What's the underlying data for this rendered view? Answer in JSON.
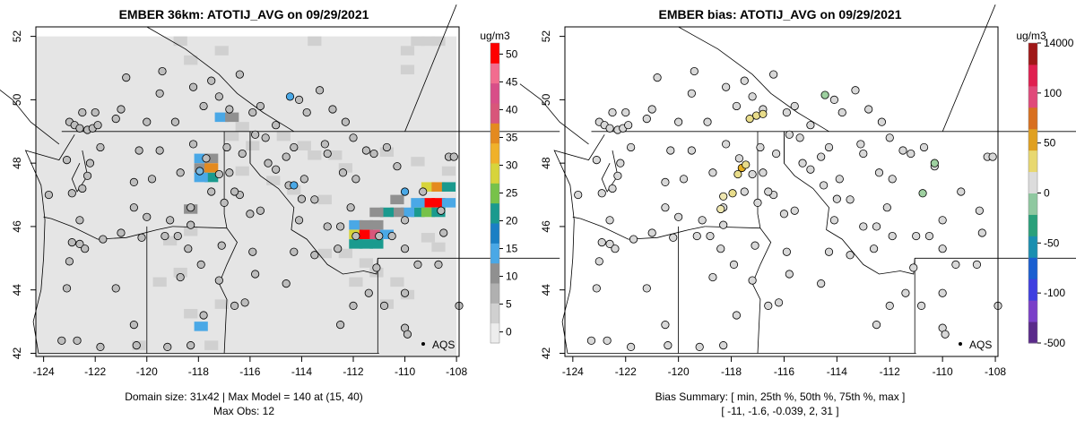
{
  "chart_data": [
    {
      "type": "heatmap",
      "title": "EMBER 36km: ATOTIJ_AVG on 09/29/2021",
      "xlabel": "",
      "ylabel": "",
      "x_ticks": [
        "-124",
        "-122",
        "-120",
        "-118",
        "-116",
        "-114",
        "-112",
        "-110",
        "-108"
      ],
      "y_ticks": [
        "42",
        "44",
        "46",
        "48",
        "50",
        "52"
      ],
      "xlim": [
        -124.3,
        -107.9
      ],
      "ylim": [
        41.9,
        52.3
      ],
      "colorbar": {
        "unit_label": "ug/m3",
        "ticks": [
          "0",
          "5",
          "10",
          "15",
          "20",
          "25",
          "30",
          "35",
          "40",
          "45",
          "50"
        ],
        "range": [
          -2,
          52
        ],
        "colors": [
          "#ededed",
          "#d0d0d0",
          "#b0b0b0",
          "#909090",
          "#4aa8e6",
          "#1a7fc4",
          "#1a9a8e",
          "#77c24a",
          "#d7d43b",
          "#f0b12a",
          "#e48a1f",
          "#d8567a",
          "#d84e88",
          "#f26c8f",
          "#ff0000"
        ]
      },
      "legend_label": "AQS",
      "caption_line1": "Domain size: 31x42 | Max Model = 140 at (15, 40)",
      "caption_line2": "Max Obs: 12",
      "hot_cells": [
        {
          "lon": -109.1,
          "lat": 47.25,
          "value": 30
        },
        {
          "lon": -108.7,
          "lat": 47.25,
          "value": 35
        },
        {
          "lon": -108.3,
          "lat": 47.25,
          "value": 20
        },
        {
          "lon": -109.1,
          "lat": 46.75,
          "value": 50
        },
        {
          "lon": -108.7,
          "lat": 46.75,
          "value": 50
        },
        {
          "lon": -108.3,
          "lat": 46.75,
          "value": 15
        },
        {
          "lon": -109.5,
          "lat": 46.75,
          "value": 15
        },
        {
          "lon": -109.5,
          "lat": 46.45,
          "value": 20
        },
        {
          "lon": -109.9,
          "lat": 46.45,
          "value": 15
        },
        {
          "lon": -110.3,
          "lat": 46.45,
          "value": 12
        },
        {
          "lon": -110.7,
          "lat": 46.45,
          "value": 22
        },
        {
          "lon": -111.1,
          "lat": 46.45,
          "value": 12
        },
        {
          "lon": -109.1,
          "lat": 46.45,
          "value": 25
        },
        {
          "lon": -108.7,
          "lat": 46.45,
          "value": 20
        },
        {
          "lon": -111.9,
          "lat": 46.05,
          "value": 15
        },
        {
          "lon": -111.5,
          "lat": 46.05,
          "value": 12
        },
        {
          "lon": -111.1,
          "lat": 46.05,
          "value": 12
        },
        {
          "lon": -111.9,
          "lat": 45.75,
          "value": 30
        },
        {
          "lon": -111.5,
          "lat": 45.75,
          "value": 50
        },
        {
          "lon": -111.1,
          "lat": 45.75,
          "value": 38
        },
        {
          "lon": -110.7,
          "lat": 45.75,
          "value": 15
        },
        {
          "lon": -111.9,
          "lat": 45.45,
          "value": 20
        },
        {
          "lon": -111.5,
          "lat": 45.45,
          "value": 20
        },
        {
          "lon": -111.1,
          "lat": 45.45,
          "value": 20
        },
        {
          "lon": -117.9,
          "lat": 47.85,
          "value": 12
        },
        {
          "lon": -117.5,
          "lat": 47.85,
          "value": 35
        },
        {
          "lon": -117.5,
          "lat": 47.55,
          "value": 20
        },
        {
          "lon": -117.9,
          "lat": 47.55,
          "value": 15
        },
        {
          "lon": -117.9,
          "lat": 48.15,
          "value": 15
        },
        {
          "lon": -117.5,
          "lat": 48.15,
          "value": 12
        },
        {
          "lon": -118.3,
          "lat": 46.55,
          "value": 12
        },
        {
          "lon": -117.1,
          "lat": 49.45,
          "value": 15
        },
        {
          "lon": -116.7,
          "lat": 49.45,
          "value": 12
        },
        {
          "lon": -117.9,
          "lat": 42.85,
          "value": 15
        },
        {
          "lon": -110.3,
          "lat": 46.85,
          "value": 12
        }
      ],
      "gray_cells": [
        {
          "lon": -114.7,
          "lat": 48.85,
          "value": 5
        },
        {
          "lon": -113.9,
          "lat": 48.55,
          "value": 5
        },
        {
          "lon": -113.5,
          "lat": 48.25,
          "value": 5
        },
        {
          "lon": -112.7,
          "lat": 48.25,
          "value": 3
        },
        {
          "lon": -112.3,
          "lat": 47.85,
          "value": 5
        },
        {
          "lon": -115.9,
          "lat": 48.55,
          "value": 3
        },
        {
          "lon": -116.3,
          "lat": 47.75,
          "value": 3
        },
        {
          "lon": -115.1,
          "lat": 47.45,
          "value": 3
        },
        {
          "lon": -114.3,
          "lat": 47.15,
          "value": 5
        },
        {
          "lon": -113.1,
          "lat": 46.85,
          "value": 3
        },
        {
          "lon": -116.7,
          "lat": 48.85,
          "value": 5
        },
        {
          "lon": -116.3,
          "lat": 49.15,
          "value": 3
        },
        {
          "lon": -112.3,
          "lat": 45.15,
          "value": 5
        },
        {
          "lon": -111.5,
          "lat": 44.85,
          "value": 5
        },
        {
          "lon": -111.1,
          "lat": 44.55,
          "value": 3
        },
        {
          "lon": -110.3,
          "lat": 44.25,
          "value": 5
        },
        {
          "lon": -109.9,
          "lat": 43.85,
          "value": 3
        },
        {
          "lon": -110.7,
          "lat": 43.55,
          "value": 5
        },
        {
          "lon": -111.9,
          "lat": 44.25,
          "value": 3
        },
        {
          "lon": -113.1,
          "lat": 45.15,
          "value": 3
        },
        {
          "lon": -118.3,
          "lat": 45.85,
          "value": 5
        },
        {
          "lon": -119.1,
          "lat": 45.55,
          "value": 3
        },
        {
          "lon": -118.7,
          "lat": 44.55,
          "value": 3
        },
        {
          "lon": -119.5,
          "lat": 44.25,
          "value": 5
        },
        {
          "lon": -118.3,
          "lat": 43.25,
          "value": 3
        },
        {
          "lon": -117.1,
          "lat": 43.55,
          "value": 3
        },
        {
          "lon": -120.3,
          "lat": 42.25,
          "value": 5
        },
        {
          "lon": -117.5,
          "lat": 42.25,
          "value": 3
        },
        {
          "lon": -109.1,
          "lat": 45.65,
          "value": 5
        },
        {
          "lon": -108.7,
          "lat": 45.35,
          "value": 3
        },
        {
          "lon": -108.3,
          "lat": 47.75,
          "value": 5
        },
        {
          "lon": -109.5,
          "lat": 48.05,
          "value": 3
        },
        {
          "lon": -110.7,
          "lat": 48.35,
          "value": 3
        },
        {
          "lon": -109.1,
          "lat": 51.85,
          "value": 5
        },
        {
          "lon": -108.7,
          "lat": 51.85,
          "value": 5
        },
        {
          "lon": -109.5,
          "lat": 51.85,
          "value": 5
        },
        {
          "lon": -109.9,
          "lat": 51.55,
          "value": 3
        },
        {
          "lon": -109.9,
          "lat": 50.95,
          "value": 3
        },
        {
          "lon": -113.5,
          "lat": 51.85,
          "value": 3
        },
        {
          "lon": -118.3,
          "lat": 51.25,
          "value": 3
        },
        {
          "lon": -118.7,
          "lat": 51.85,
          "value": 3
        },
        {
          "lon": -117.1,
          "lat": 51.55,
          "value": 3
        }
      ]
    },
    {
      "type": "scatter",
      "title": "EMBER bias: ATOTIJ_AVG on 09/29/2021",
      "xlabel": "",
      "ylabel": "",
      "x_ticks": [
        "-124",
        "-122",
        "-120",
        "-118",
        "-116",
        "-114",
        "-112",
        "-110",
        "-108"
      ],
      "y_ticks": [
        "42",
        "44",
        "46",
        "48",
        "50",
        "52"
      ],
      "xlim": [
        -124.3,
        -107.9
      ],
      "ylim": [
        41.9,
        52.3
      ],
      "colorbar": {
        "unit_label": "ug/m3",
        "ticks": [
          "-500",
          "-100",
          "-50",
          "0",
          "50",
          "100",
          "14000"
        ],
        "colors": [
          "#5a2a8a",
          "#7a3fc8",
          "#3f3fe0",
          "#1a5fd0",
          "#1a8fb0",
          "#2aa07a",
          "#8fc8a0",
          "#dcdcdc",
          "#e8d870",
          "#e0a020",
          "#d87020",
          "#e04a7a",
          "#e02050",
          "#a01818"
        ]
      },
      "legend_label": "AQS",
      "caption_line1": "Bias Summary: [ min, 25th %, 50th %, 75th %, max ]",
      "caption_line2": "[ -11,  -1.6,  -0.039,  2,  31 ]",
      "points": [
        {
          "lon": -117.6,
          "lat": 47.85,
          "value": 31
        },
        {
          "lon": -117.45,
          "lat": 47.95,
          "value": 18
        },
        {
          "lon": -117.75,
          "lat": 47.65,
          "value": 12
        },
        {
          "lon": -117.05,
          "lat": 49.5,
          "value": 10
        },
        {
          "lon": -116.8,
          "lat": 49.55,
          "value": 8
        },
        {
          "lon": -117.3,
          "lat": 49.4,
          "value": 6
        },
        {
          "lon": -117.95,
          "lat": 47.05,
          "value": 8
        },
        {
          "lon": -118.3,
          "lat": 46.95,
          "value": 5
        },
        {
          "lon": -118.4,
          "lat": 46.55,
          "value": 4
        },
        {
          "lon": -114.45,
          "lat": 50.15,
          "value": -8
        },
        {
          "lon": -110.3,
          "lat": 48.0,
          "value": -5
        },
        {
          "lon": -110.75,
          "lat": 47.05,
          "value": -3
        }
      ]
    }
  ]
}
